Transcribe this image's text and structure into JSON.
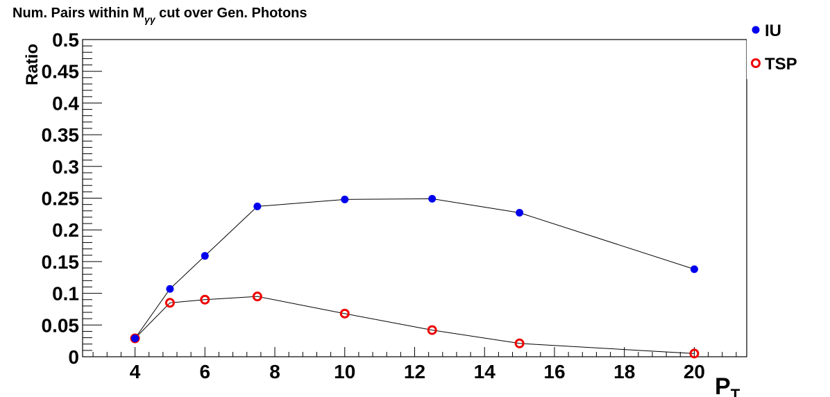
{
  "chart_data": {
    "type": "scatter",
    "title_main": "Num. Pairs within M",
    "title_sub": "γγ",
    "title_tail": " cut over Gen. Photons",
    "xlabel_main": "P",
    "xlabel_sub": "T",
    "ylabel": "Ratio",
    "xlim": [
      2.5,
      21.5
    ],
    "ylim": [
      0,
      0.5
    ],
    "x_major_ticks": [
      4,
      6,
      8,
      10,
      12,
      14,
      16,
      18,
      20
    ],
    "x_tick_labels": [
      "4",
      "6",
      "8",
      "10",
      "12",
      "14",
      "16",
      "18",
      "20"
    ],
    "y_major_ticks": [
      0,
      0.05,
      0.1,
      0.15,
      0.2,
      0.25,
      0.3,
      0.35,
      0.4,
      0.45,
      0.5
    ],
    "y_tick_labels": [
      "0",
      "0.05",
      "0.1",
      "0.15",
      "0.2",
      "0.25",
      "0.3",
      "0.35",
      "0.4",
      "0.45",
      "0.5"
    ],
    "grid": false,
    "legend_position": "top-right",
    "series": [
      {
        "name": "IU",
        "marker": "filled-circle",
        "color": "#0000ee",
        "x": [
          4,
          5,
          6,
          7.5,
          10,
          12.5,
          15,
          20
        ],
        "y": [
          0.029,
          0.107,
          0.159,
          0.237,
          0.248,
          0.249,
          0.227,
          0.138
        ]
      },
      {
        "name": "TSP",
        "marker": "open-circle",
        "color": "#ee0000",
        "x": [
          4,
          5,
          6,
          7.5,
          10,
          12.5,
          15,
          20
        ],
        "y": [
          0.029,
          0.085,
          0.09,
          0.095,
          0.068,
          0.042,
          0.021,
          0.005
        ]
      }
    ]
  }
}
